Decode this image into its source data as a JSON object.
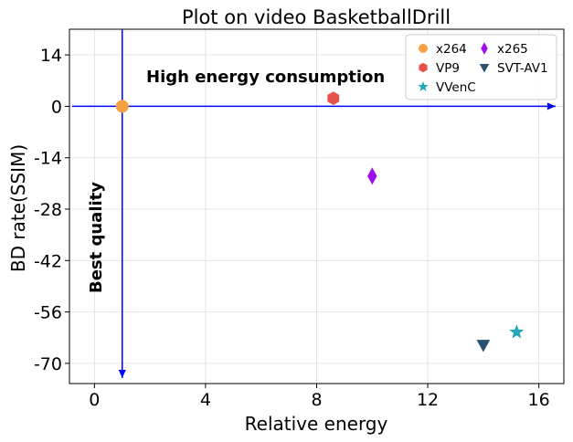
{
  "chart_data": {
    "type": "scatter",
    "title": "Plot on video BasketballDrill",
    "xlabel": "Relative energy",
    "ylabel": "BD rate(SSIM)",
    "xlim": [
      -0.9,
      16.9
    ],
    "ylim": [
      -75.5,
      21
    ],
    "xticks": [
      0,
      4,
      8,
      12,
      16
    ],
    "yticks": [
      14,
      0,
      -14,
      -28,
      -42,
      -56,
      -70
    ],
    "grid": true,
    "legend_position": "top-right",
    "legend_columns": 2,
    "series": [
      {
        "name": "x264",
        "marker": "circle",
        "color": "#f5a142",
        "points": [
          {
            "x": 1.0,
            "y": 0.0
          }
        ]
      },
      {
        "name": "x265",
        "marker": "diamond",
        "color": "#9b10f0",
        "points": [
          {
            "x": 10.0,
            "y": -19.0
          }
        ]
      },
      {
        "name": "VP9",
        "marker": "hexagon",
        "color": "#e8504a",
        "points": [
          {
            "x": 8.6,
            "y": 2.2
          }
        ]
      },
      {
        "name": "SVT-AV1",
        "marker": "triangle-down",
        "color": "#2a5270",
        "points": [
          {
            "x": 14.0,
            "y": -65.0
          }
        ]
      },
      {
        "name": "VVenC",
        "marker": "star",
        "color": "#21a7b8",
        "points": [
          {
            "x": 15.2,
            "y": -61.5
          }
        ]
      }
    ],
    "annotations": [
      {
        "text": "High energy consumption",
        "orientation": "horizontal",
        "arrow": "right",
        "from": {
          "x": -0.8,
          "y": 0.0
        },
        "to": {
          "x": 16.6,
          "y": 0.0
        }
      },
      {
        "text": "Best quality",
        "orientation": "vertical",
        "arrow": "down",
        "from": {
          "x": 1.0,
          "y": 21.0
        },
        "to": {
          "x": 1.0,
          "y": -74.0
        }
      }
    ],
    "arrow_color": "#0000ff"
  }
}
